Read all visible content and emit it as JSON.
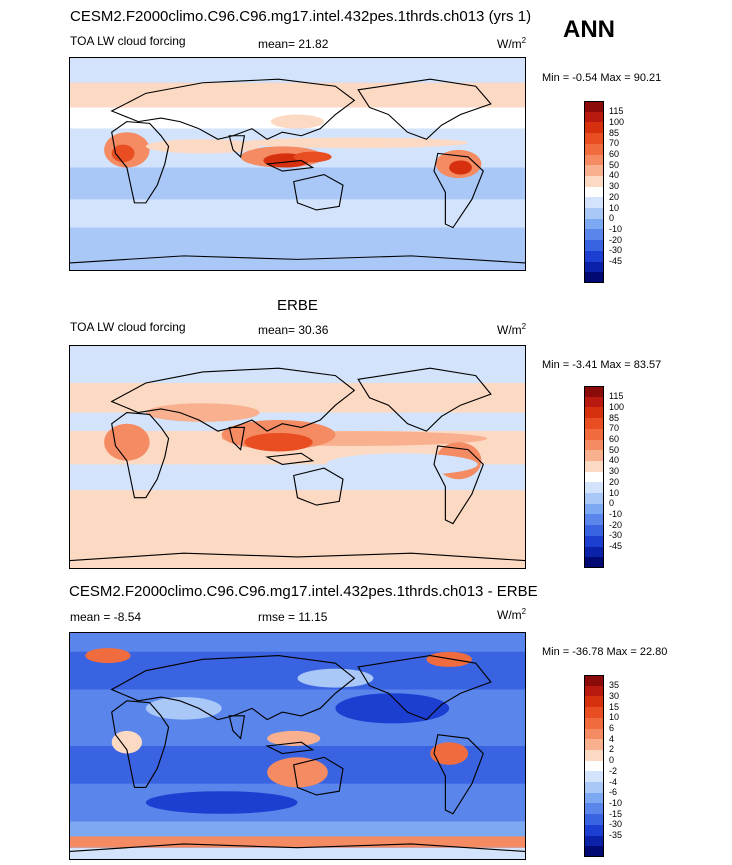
{
  "header": {
    "main_title": "CESM2.F2000climo.C96.C96.mg17.intel.432pes.1thrds.ch013 (yrs 1)",
    "season": "ANN"
  },
  "panels": [
    {
      "id": "model",
      "heading": "",
      "left_label": "TOA LW cloud forcing",
      "center_label": "mean=  21.82",
      "units": "W/m",
      "units_sup": "2",
      "minmax": "Min =  -0.54 Max =  90.21",
      "colorbar": {
        "labels": [
          "115",
          "100",
          "85",
          "70",
          "60",
          "50",
          "40",
          "30",
          "20",
          "10",
          "0",
          "-10",
          "-20",
          "-30",
          "-45"
        ],
        "colors": [
          "#8b0a0a",
          "#b81a0f",
          "#d6300e",
          "#e84e22",
          "#f06c3e",
          "#f48b62",
          "#f8b08e",
          "#fcd9c3",
          "#ffffff",
          "#d2e3fb",
          "#a9c7f7",
          "#7da8f2",
          "#5a86ec",
          "#3a63e2",
          "#1c3fd2",
          "#0b22a8",
          "#000a72"
        ]
      },
      "map_style": "model"
    },
    {
      "id": "obs",
      "heading": "ERBE",
      "left_label": "TOA LW cloud forcing",
      "center_label": "mean=  30.36",
      "units": "W/m",
      "units_sup": "2",
      "minmax": "Min =  -3.41 Max =  83.57",
      "colorbar": {
        "labels": [
          "115",
          "100",
          "85",
          "70",
          "60",
          "50",
          "40",
          "30",
          "20",
          "10",
          "0",
          "-10",
          "-20",
          "-30",
          "-45"
        ],
        "colors": [
          "#8b0a0a",
          "#b81a0f",
          "#d6300e",
          "#e84e22",
          "#f06c3e",
          "#f48b62",
          "#f8b08e",
          "#fcd9c3",
          "#ffffff",
          "#d2e3fb",
          "#a9c7f7",
          "#7da8f2",
          "#5a86ec",
          "#3a63e2",
          "#1c3fd2",
          "#0b22a8",
          "#000a72"
        ]
      },
      "map_style": "obs"
    },
    {
      "id": "diff",
      "heading": "CESM2.F2000climo.C96.C96.mg17.intel.432pes.1thrds.ch013 - ERBE",
      "left_label": "mean =  -8.54",
      "center_label": "rmse =  11.15",
      "units": "W/m",
      "units_sup": "2",
      "minmax": "Min = -36.78 Max =  22.80",
      "colorbar": {
        "labels": [
          "35",
          "30",
          "15",
          "10",
          "6",
          "4",
          "2",
          "0",
          "-2",
          "-4",
          "-6",
          "-10",
          "-15",
          "-30",
          "-35"
        ],
        "colors": [
          "#8b0a0a",
          "#b81a0f",
          "#d6300e",
          "#e84e22",
          "#f06c3e",
          "#f48b62",
          "#f8b08e",
          "#fcd9c3",
          "#ffffff",
          "#d2e3fb",
          "#a9c7f7",
          "#7da8f2",
          "#5a86ec",
          "#3a63e2",
          "#1c3fd2",
          "#0b22a8",
          "#000a72"
        ]
      },
      "map_style": "diff"
    }
  ]
}
